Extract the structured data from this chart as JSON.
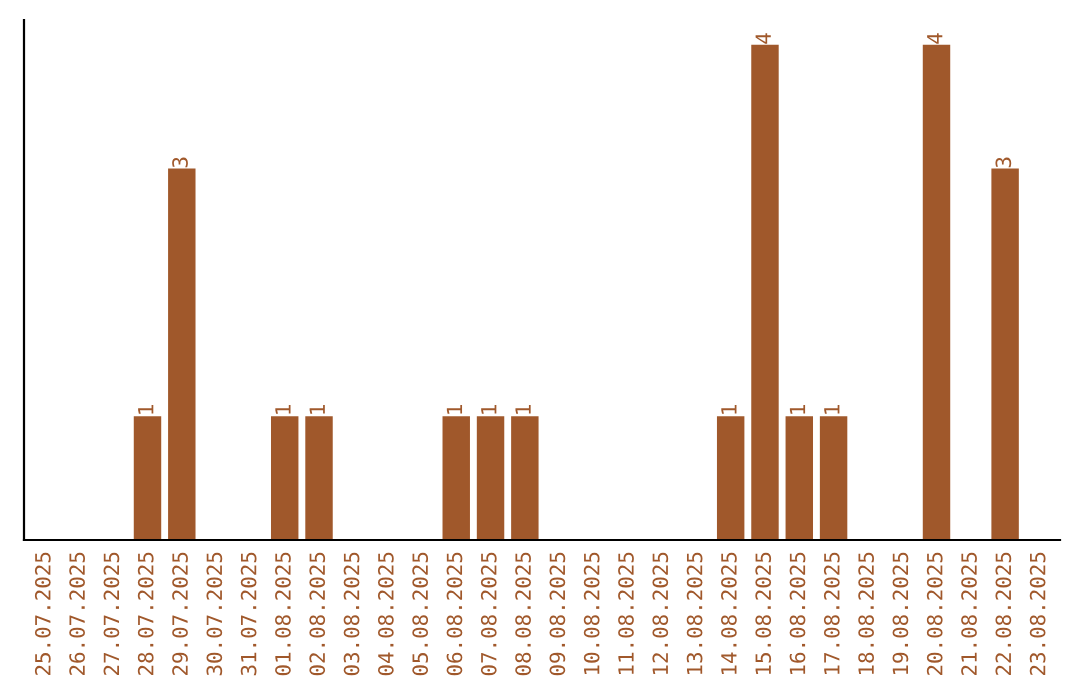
{
  "chart_data": {
    "type": "bar",
    "categories": [
      "25.07.2025",
      "26.07.2025",
      "27.07.2025",
      "28.07.2025",
      "29.07.2025",
      "30.07.2025",
      "31.07.2025",
      "01.08.2025",
      "02.08.2025",
      "03.08.2025",
      "04.08.2025",
      "05.08.2025",
      "06.08.2025",
      "07.08.2025",
      "08.08.2025",
      "09.08.2025",
      "10.08.2025",
      "11.08.2025",
      "12.08.2025",
      "13.08.2025",
      "14.08.2025",
      "15.08.2025",
      "16.08.2025",
      "17.08.2025",
      "18.08.2025",
      "19.08.2025",
      "20.08.2025",
      "21.08.2025",
      "22.08.2025",
      "23.08.2025"
    ],
    "values": [
      0,
      0,
      0,
      1,
      3,
      0,
      0,
      1,
      1,
      0,
      0,
      0,
      1,
      1,
      1,
      0,
      0,
      0,
      0,
      0,
      1,
      4,
      1,
      1,
      0,
      0,
      4,
      0,
      3,
      0
    ],
    "value_labels": [
      null,
      null,
      null,
      "1",
      "3",
      null,
      null,
      "1",
      "1",
      null,
      null,
      null,
      "1",
      "1",
      "1",
      null,
      null,
      null,
      null,
      null,
      "1",
      "4",
      "1",
      "1",
      null,
      null,
      "4",
      null,
      "3",
      null
    ],
    "color": "#a0582b",
    "grid": false,
    "legend": false,
    "tick_labels": "x"
  }
}
